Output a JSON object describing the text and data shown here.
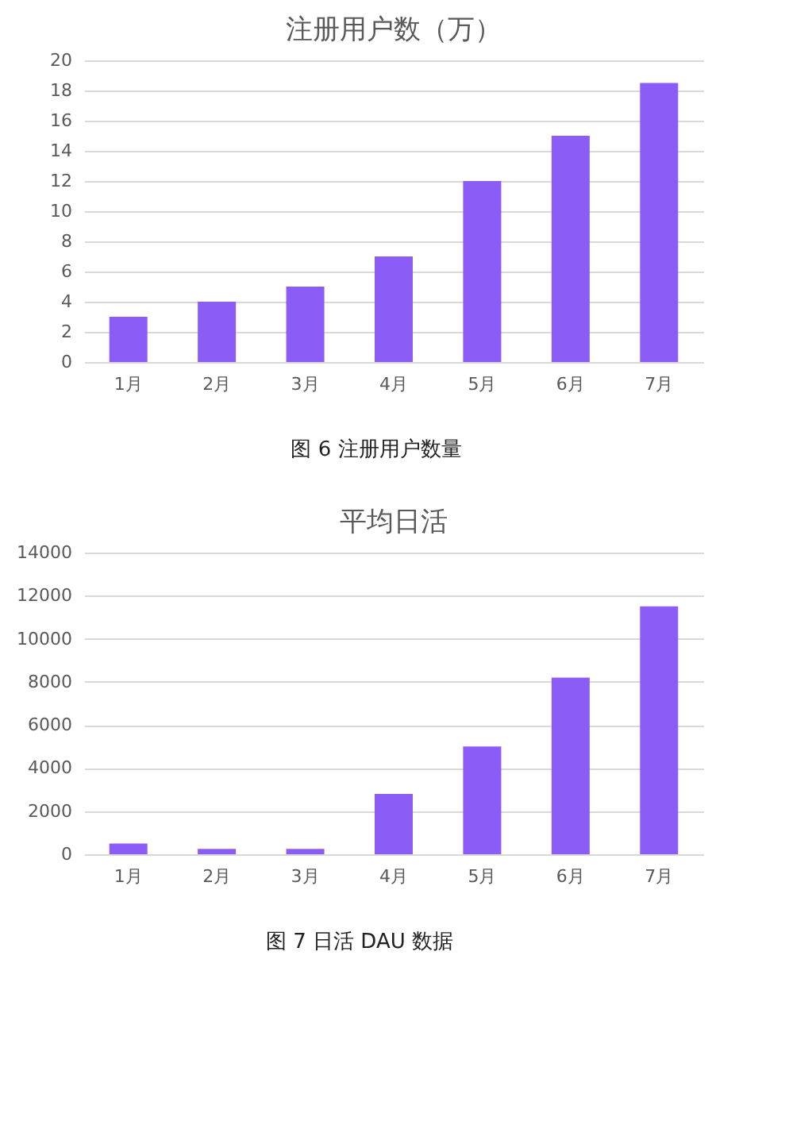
{
  "chart_data": [
    {
      "type": "bar",
      "title": "注册用户数（万）",
      "categories": [
        "1月",
        "2月",
        "3月",
        "4月",
        "5月",
        "6月",
        "7月"
      ],
      "values": [
        3,
        4,
        5,
        7,
        12,
        15,
        18.5
      ],
      "color": "#8b5cf6",
      "ylim": [
        0,
        20
      ],
      "yticks": [
        0,
        2,
        4,
        6,
        8,
        10,
        12,
        14,
        16,
        18,
        20
      ],
      "grid": "y",
      "annotations": [
        "图 6  注册用户数量"
      ]
    },
    {
      "type": "bar",
      "title": "平均日活",
      "categories": [
        "1月",
        "2月",
        "3月",
        "4月",
        "5月",
        "6月",
        "7月"
      ],
      "values": [
        500,
        250,
        250,
        2800,
        5000,
        8200,
        11500
      ],
      "color": "#8b5cf6",
      "ylim": [
        0,
        14000
      ],
      "yticks": [
        0,
        2000,
        4000,
        6000,
        8000,
        10000,
        12000,
        14000
      ],
      "grid": "y",
      "annotations": [
        "图 7  日活 DAU 数据"
      ]
    }
  ]
}
